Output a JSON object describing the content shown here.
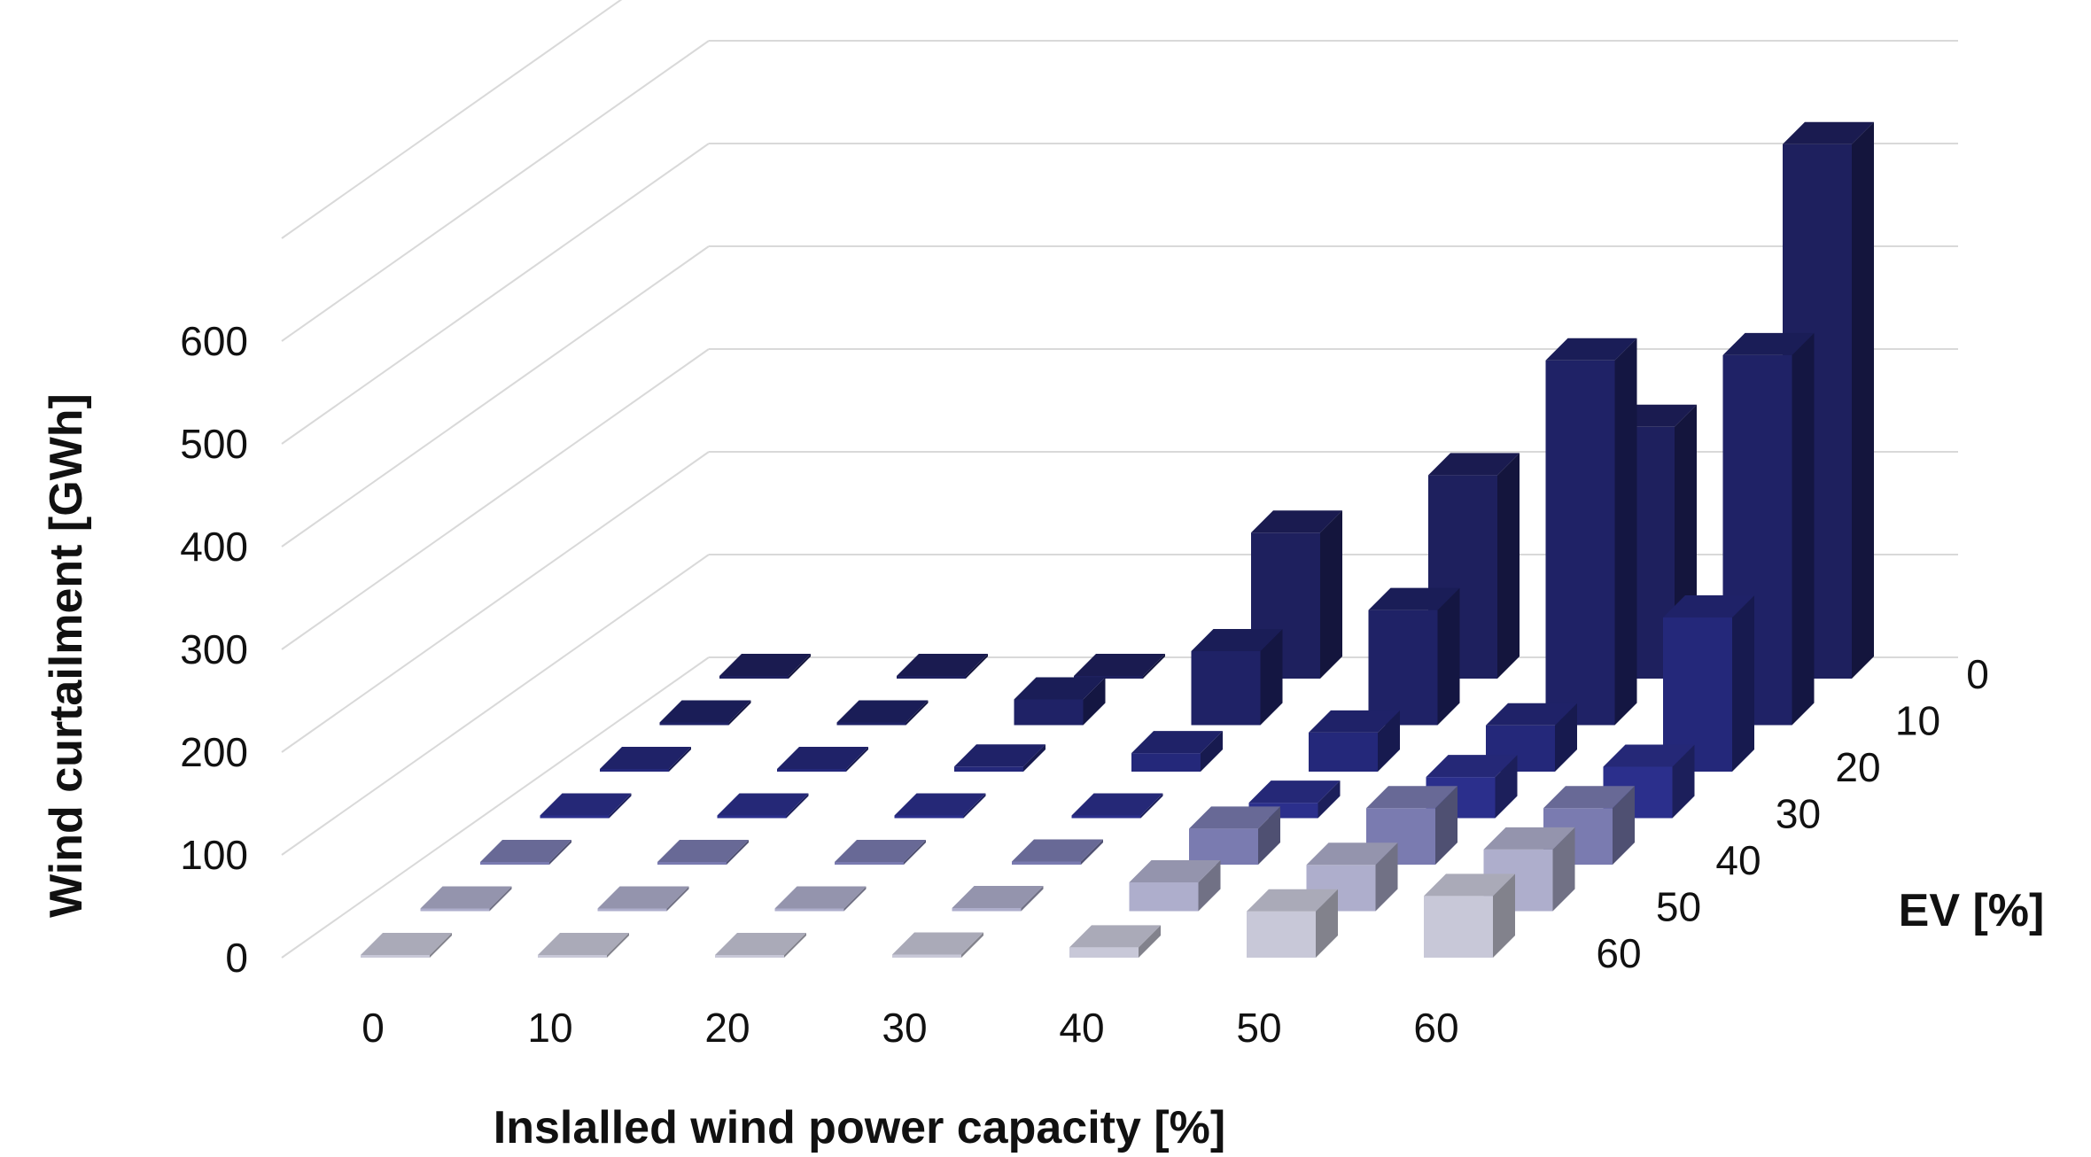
{
  "chart_data": {
    "type": "bar3d",
    "title": "",
    "xlabel": "Inslalled wind power capacity [%]",
    "ylabel": "Wind curtailment [GWh]",
    "zlabel": "EV [%]",
    "x_ticks": [
      "0",
      "10",
      "20",
      "30",
      "40",
      "50",
      "60"
    ],
    "y_ticks": [
      "0",
      "100",
      "200",
      "300",
      "400",
      "500",
      "600"
    ],
    "z_ticks": [
      "0",
      "10",
      "20",
      "30",
      "40",
      "50",
      "60"
    ],
    "ylim": [
      0,
      600
    ],
    "grid": true,
    "categories": [
      "0",
      "10",
      "20",
      "30",
      "40",
      "50",
      "60"
    ],
    "series": [
      {
        "ev": "0",
        "color": "#1e205e",
        "values": [
          0,
          2,
          0,
          142,
          198,
          245,
          520
        ]
      },
      {
        "ev": "10",
        "color": "#1f2266",
        "values": [
          0,
          0,
          25,
          72,
          112,
          355,
          360
        ]
      },
      {
        "ev": "20",
        "color": "#24287a",
        "values": [
          0,
          0,
          5,
          18,
          38,
          45,
          150
        ]
      },
      {
        "ev": "30",
        "color": "#2b2f8c",
        "values": [
          0,
          0,
          0,
          2,
          15,
          40,
          50
        ]
      },
      {
        "ev": "40",
        "color": "#7a7bb0",
        "values": [
          0,
          0,
          0,
          3,
          35,
          55,
          55
        ]
      },
      {
        "ev": "50",
        "color": "#aeaecc",
        "values": [
          0,
          0,
          0,
          3,
          28,
          45,
          60
        ]
      },
      {
        "ev": "60",
        "color": "#c8c8d8",
        "values": [
          0,
          0,
          0,
          3,
          10,
          45,
          60
        ]
      }
    ]
  }
}
